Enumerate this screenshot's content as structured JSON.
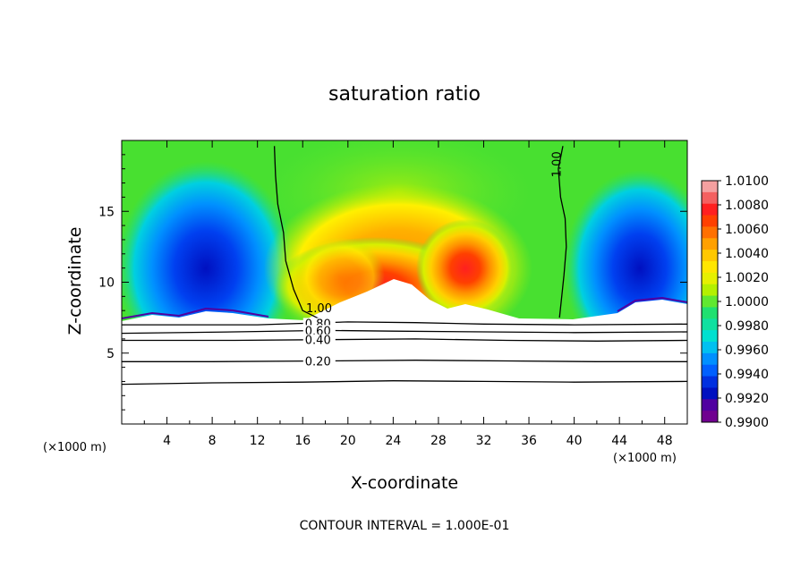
{
  "chart_data": {
    "type": "heatmap",
    "title": "saturation ratio",
    "xlabel": "X-coordinate",
    "ylabel": "Z-coordinate",
    "x_unit": "(×1000 m)",
    "x_unit_right": "(×1000 m)",
    "xlim": [
      0,
      50
    ],
    "ylim": [
      0,
      20
    ],
    "x_ticks": [
      4,
      8,
      12,
      16,
      20,
      24,
      28,
      32,
      36,
      40,
      44,
      48
    ],
    "y_ticks": [
      5,
      10,
      15
    ],
    "footer": "CONTOUR INTERVAL = 1.000E-01",
    "colorbar": {
      "labels": [
        "1.0100",
        "1.0080",
        "1.0060",
        "1.0040",
        "1.0020",
        "1.0000",
        "0.9980",
        "0.9960",
        "0.9940",
        "0.9920",
        "0.9900"
      ],
      "levels": [
        1.01,
        1.009,
        1.008,
        1.007,
        1.006,
        1.005,
        1.004,
        1.003,
        1.002,
        1.001,
        1.0,
        0.999,
        0.998,
        0.997,
        0.996,
        0.995,
        0.994,
        0.993,
        0.992,
        0.991,
        0.99
      ],
      "colors": [
        "#f4a0a0",
        "#f46060",
        "#ff2020",
        "#ff4000",
        "#ff7000",
        "#ffa000",
        "#ffc800",
        "#ffe600",
        "#e6f000",
        "#b4f000",
        "#60e830",
        "#20e070",
        "#10e0a0",
        "#00e0d0",
        "#00c0f0",
        "#0090ff",
        "#0060ff",
        "#0030e0",
        "#0010c0",
        "#5000a0",
        "#700090"
      ]
    },
    "field_features": [
      {
        "name": "left dry plume",
        "x_center": 8,
        "z_range": [
          7.5,
          16.5
        ],
        "min_value": 0.99
      },
      {
        "name": "central moist region",
        "x_range": [
          17,
          35
        ],
        "z_range": [
          7.5,
          13.5
        ],
        "max_value": 1.008
      },
      {
        "name": "right dry plume",
        "x_center": 46,
        "z_range": [
          7.5,
          16
        ],
        "min_value": 0.991
      }
    ],
    "contours": [
      {
        "label": "1.00",
        "points": [
          [
            13.5,
            19.6
          ],
          [
            13.6,
            17.5
          ],
          [
            13.8,
            15.5
          ],
          [
            14.3,
            13.5
          ],
          [
            14.5,
            11.5
          ],
          [
            15.2,
            9.5
          ],
          [
            16.0,
            8.0
          ],
          [
            17.5,
            7.4
          ]
        ]
      },
      {
        "label": "1.00",
        "points": [
          [
            39.0,
            19.6
          ],
          [
            38.6,
            18.0
          ],
          [
            38.8,
            16.0
          ],
          [
            39.2,
            14.5
          ],
          [
            39.3,
            12.5
          ],
          [
            39.1,
            10.5
          ],
          [
            38.9,
            9.0
          ],
          [
            38.7,
            7.5
          ]
        ]
      },
      {
        "label": "0.80",
        "points": [
          [
            0,
            7.0
          ],
          [
            12,
            7.0
          ],
          [
            16,
            7.1
          ],
          [
            20,
            7.2
          ],
          [
            26,
            7.15
          ],
          [
            32,
            7.05
          ],
          [
            40,
            7.0
          ],
          [
            50,
            7.05
          ]
        ]
      },
      {
        "label": "0.60",
        "points": [
          [
            0,
            6.4
          ],
          [
            10,
            6.5
          ],
          [
            18,
            6.6
          ],
          [
            24,
            6.55
          ],
          [
            32,
            6.5
          ],
          [
            40,
            6.45
          ],
          [
            50,
            6.5
          ]
        ]
      },
      {
        "label": "0.40",
        "points": [
          [
            0,
            5.9
          ],
          [
            10,
            5.9
          ],
          [
            18,
            5.95
          ],
          [
            26,
            6.0
          ],
          [
            34,
            5.9
          ],
          [
            42,
            5.85
          ],
          [
            50,
            5.9
          ]
        ]
      },
      {
        "label": "0.20",
        "points": [
          [
            0,
            4.4
          ],
          [
            8,
            4.4
          ],
          [
            18,
            4.45
          ],
          [
            26,
            4.5
          ],
          [
            34,
            4.45
          ],
          [
            42,
            4.4
          ],
          [
            50,
            4.4
          ]
        ]
      },
      {
        "label": "",
        "points": [
          [
            0,
            2.8
          ],
          [
            8,
            2.9
          ],
          [
            16,
            2.95
          ],
          [
            24,
            3.05
          ],
          [
            32,
            3.0
          ],
          [
            40,
            2.95
          ],
          [
            50,
            3.0
          ]
        ]
      }
    ]
  }
}
